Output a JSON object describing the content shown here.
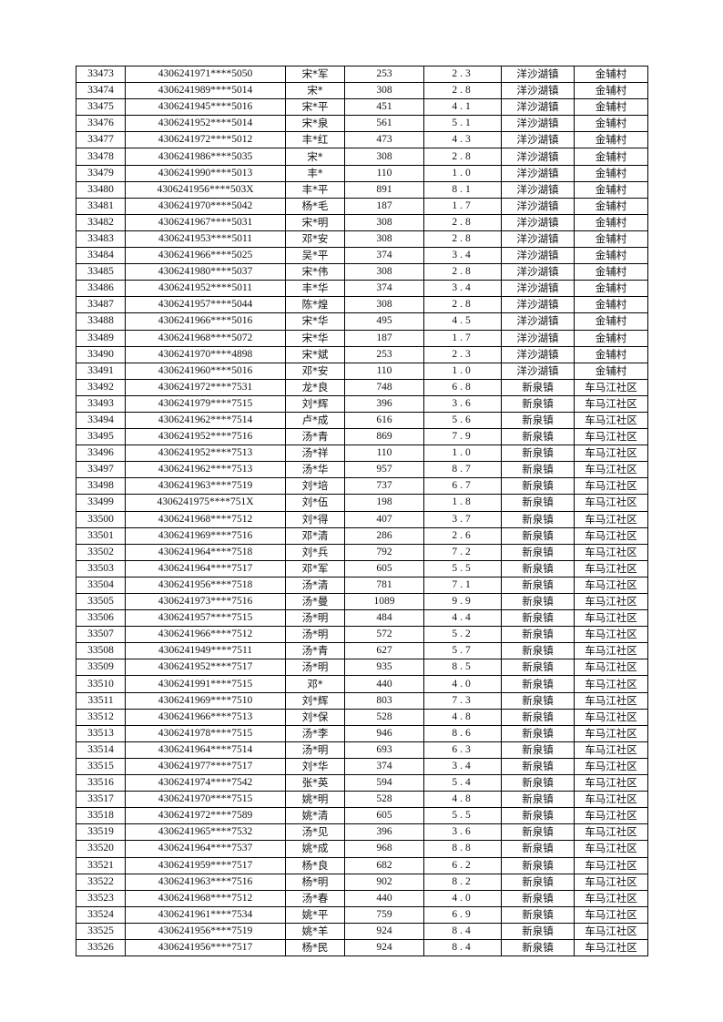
{
  "rows": [
    [
      "33473",
      "4306241971****5050",
      "宋*军",
      "253",
      "2.3",
      "洋沙湖镇",
      "金辅村"
    ],
    [
      "33474",
      "4306241989****5014",
      "宋*",
      "308",
      "2.8",
      "洋沙湖镇",
      "金辅村"
    ],
    [
      "33475",
      "4306241945****5016",
      "宋*平",
      "451",
      "4.1",
      "洋沙湖镇",
      "金辅村"
    ],
    [
      "33476",
      "4306241952****5014",
      "宋*泉",
      "561",
      "5.1",
      "洋沙湖镇",
      "金辅村"
    ],
    [
      "33477",
      "4306241972****5012",
      "丰*红",
      "473",
      "4.3",
      "洋沙湖镇",
      "金辅村"
    ],
    [
      "33478",
      "4306241986****5035",
      "宋*",
      "308",
      "2.8",
      "洋沙湖镇",
      "金辅村"
    ],
    [
      "33479",
      "4306241990****5013",
      "丰*",
      "110",
      "1.0",
      "洋沙湖镇",
      "金辅村"
    ],
    [
      "33480",
      "4306241956****503X",
      "丰*平",
      "891",
      "8.1",
      "洋沙湖镇",
      "金辅村"
    ],
    [
      "33481",
      "4306241970****5042",
      "杨*毛",
      "187",
      "1.7",
      "洋沙湖镇",
      "金辅村"
    ],
    [
      "33482",
      "4306241967****5031",
      "宋*明",
      "308",
      "2.8",
      "洋沙湖镇",
      "金辅村"
    ],
    [
      "33483",
      "4306241953****5011",
      "邓*安",
      "308",
      "2.8",
      "洋沙湖镇",
      "金辅村"
    ],
    [
      "33484",
      "4306241966****5025",
      "吴*平",
      "374",
      "3.4",
      "洋沙湖镇",
      "金辅村"
    ],
    [
      "33485",
      "4306241980****5037",
      "宋*伟",
      "308",
      "2.8",
      "洋沙湖镇",
      "金辅村"
    ],
    [
      "33486",
      "4306241952****5011",
      "丰*华",
      "374",
      "3.4",
      "洋沙湖镇",
      "金辅村"
    ],
    [
      "33487",
      "4306241957****5044",
      "陈*煌",
      "308",
      "2.8",
      "洋沙湖镇",
      "金辅村"
    ],
    [
      "33488",
      "4306241966****5016",
      "宋*华",
      "495",
      "4.5",
      "洋沙湖镇",
      "金辅村"
    ],
    [
      "33489",
      "4306241968****5072",
      "宋*华",
      "187",
      "1.7",
      "洋沙湖镇",
      "金辅村"
    ],
    [
      "33490",
      "4306241970****4898",
      "宋*斌",
      "253",
      "2.3",
      "洋沙湖镇",
      "金辅村"
    ],
    [
      "33491",
      "4306241960****5016",
      "邓*安",
      "110",
      "1.0",
      "洋沙湖镇",
      "金辅村"
    ],
    [
      "33492",
      "4306241972****7531",
      "龙*良",
      "748",
      "6.8",
      "新泉镇",
      "车马江社区"
    ],
    [
      "33493",
      "4306241979****7515",
      "刘*辉",
      "396",
      "3.6",
      "新泉镇",
      "车马江社区"
    ],
    [
      "33494",
      "4306241962****7514",
      "卢*成",
      "616",
      "5.6",
      "新泉镇",
      "车马江社区"
    ],
    [
      "33495",
      "4306241952****7516",
      "汤*青",
      "869",
      "7.9",
      "新泉镇",
      "车马江社区"
    ],
    [
      "33496",
      "4306241952****7513",
      "汤*祥",
      "110",
      "1.0",
      "新泉镇",
      "车马江社区"
    ],
    [
      "33497",
      "4306241962****7513",
      "汤*华",
      "957",
      "8.7",
      "新泉镇",
      "车马江社区"
    ],
    [
      "33498",
      "4306241963****7519",
      "刘*培",
      "737",
      "6.7",
      "新泉镇",
      "车马江社区"
    ],
    [
      "33499",
      "4306241975****751X",
      "刘*伍",
      "198",
      "1.8",
      "新泉镇",
      "车马江社区"
    ],
    [
      "33500",
      "4306241968****7512",
      "刘*得",
      "407",
      "3.7",
      "新泉镇",
      "车马江社区"
    ],
    [
      "33501",
      "4306241969****7516",
      "邓*清",
      "286",
      "2.6",
      "新泉镇",
      "车马江社区"
    ],
    [
      "33502",
      "4306241964****7518",
      "刘*兵",
      "792",
      "7.2",
      "新泉镇",
      "车马江社区"
    ],
    [
      "33503",
      "4306241964****7517",
      "邓*军",
      "605",
      "5.5",
      "新泉镇",
      "车马江社区"
    ],
    [
      "33504",
      "4306241956****7518",
      "汤*清",
      "781",
      "7.1",
      "新泉镇",
      "车马江社区"
    ],
    [
      "33505",
      "4306241973****7516",
      "汤*曼",
      "1089",
      "9.9",
      "新泉镇",
      "车马江社区"
    ],
    [
      "33506",
      "4306241957****7515",
      "汤*明",
      "484",
      "4.4",
      "新泉镇",
      "车马江社区"
    ],
    [
      "33507",
      "4306241966****7512",
      "汤*明",
      "572",
      "5.2",
      "新泉镇",
      "车马江社区"
    ],
    [
      "33508",
      "4306241949****7511",
      "汤*青",
      "627",
      "5.7",
      "新泉镇",
      "车马江社区"
    ],
    [
      "33509",
      "4306241952****7517",
      "汤*明",
      "935",
      "8.5",
      "新泉镇",
      "车马江社区"
    ],
    [
      "33510",
      "4306241991****7515",
      "邓*",
      "440",
      "4.0",
      "新泉镇",
      "车马江社区"
    ],
    [
      "33511",
      "4306241969****7510",
      "刘*辉",
      "803",
      "7.3",
      "新泉镇",
      "车马江社区"
    ],
    [
      "33512",
      "4306241966****7513",
      "刘*保",
      "528",
      "4.8",
      "新泉镇",
      "车马江社区"
    ],
    [
      "33513",
      "4306241978****7515",
      "汤*李",
      "946",
      "8.6",
      "新泉镇",
      "车马江社区"
    ],
    [
      "33514",
      "4306241964****7514",
      "汤*明",
      "693",
      "6.3",
      "新泉镇",
      "车马江社区"
    ],
    [
      "33515",
      "4306241977****7517",
      "刘*华",
      "374",
      "3.4",
      "新泉镇",
      "车马江社区"
    ],
    [
      "33516",
      "4306241974****7542",
      "张*英",
      "594",
      "5.4",
      "新泉镇",
      "车马江社区"
    ],
    [
      "33517",
      "4306241970****7515",
      "姚*明",
      "528",
      "4.8",
      "新泉镇",
      "车马江社区"
    ],
    [
      "33518",
      "4306241972****7589",
      "姚*清",
      "605",
      "5.5",
      "新泉镇",
      "车马江社区"
    ],
    [
      "33519",
      "4306241965****7532",
      "汤*见",
      "396",
      "3.6",
      "新泉镇",
      "车马江社区"
    ],
    [
      "33520",
      "4306241964****7537",
      "姚*成",
      "968",
      "8.8",
      "新泉镇",
      "车马江社区"
    ],
    [
      "33521",
      "4306241959****7517",
      "杨*良",
      "682",
      "6.2",
      "新泉镇",
      "车马江社区"
    ],
    [
      "33522",
      "4306241963****7516",
      "杨*明",
      "902",
      "8.2",
      "新泉镇",
      "车马江社区"
    ],
    [
      "33523",
      "4306241968****7512",
      "汤*春",
      "440",
      "4.0",
      "新泉镇",
      "车马江社区"
    ],
    [
      "33524",
      "4306241961****7534",
      "姚*平",
      "759",
      "6.9",
      "新泉镇",
      "车马江社区"
    ],
    [
      "33525",
      "4306241956****7519",
      "姚*羊",
      "924",
      "8.4",
      "新泉镇",
      "车马江社区"
    ],
    [
      "33526",
      "4306241956****7517",
      "杨*民",
      "924",
      "8.4",
      "新泉镇",
      "车马江社区"
    ]
  ]
}
